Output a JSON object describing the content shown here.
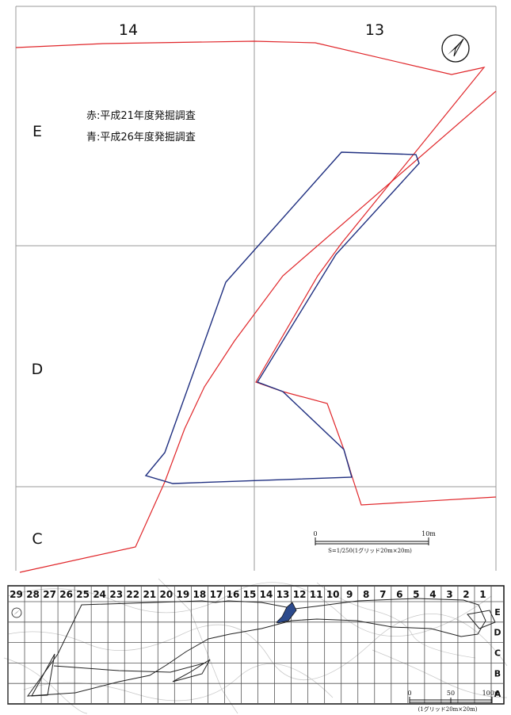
{
  "detail_map": {
    "grid_columns": [
      "14",
      "13"
    ],
    "grid_rows": [
      "E",
      "D",
      "C"
    ],
    "legend": {
      "red": "赤:平成21年度発掘調査",
      "blue": "青:平成26年度発掘調査"
    },
    "scale_bar": {
      "start_label": "0",
      "end_label": "10m",
      "caption": "S=1/250(1グリッド20m×20m)"
    },
    "colors": {
      "red_survey": "#e0262a",
      "blue_survey": "#1f2f80",
      "grid": "#9a9a9a"
    },
    "north_arrow": "north-arrow-icon"
  },
  "overview_map": {
    "columns": [
      "29",
      "28",
      "27",
      "26",
      "25",
      "24",
      "23",
      "22",
      "21",
      "20",
      "19",
      "18",
      "17",
      "16",
      "15",
      "14",
      "13",
      "12",
      "11",
      "10",
      "9",
      "8",
      "7",
      "6",
      "5",
      "4",
      "3",
      "2",
      "1"
    ],
    "rows": [
      "E",
      "D",
      "C",
      "B",
      "A"
    ],
    "scale_bar": {
      "start_label": "0",
      "mid_label": "50",
      "end_label": "100m",
      "caption": "(1グリッド20m×20m)"
    },
    "highlight_color": "#2c4a8c",
    "north_arrow": "north-arrow-icon"
  }
}
